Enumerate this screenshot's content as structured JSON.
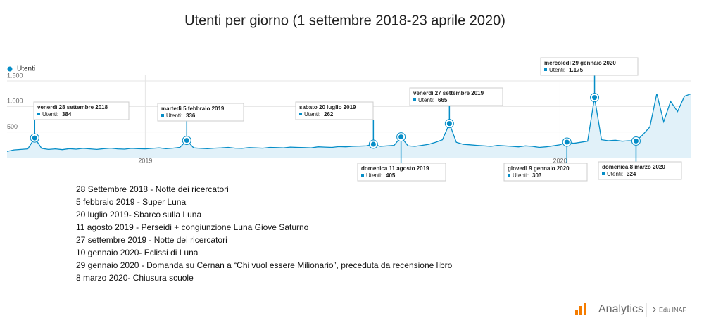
{
  "chart_data": {
    "type": "line",
    "title": "Utenti per giorno  (1 settembre 2018-23 aprile 2020)",
    "categories": [
      null,
      null,
      null,
      null,
      null,
      null,
      null,
      null,
      null,
      null,
      null,
      null,
      null,
      null,
      null,
      null,
      null,
      null,
      null,
      null,
      "2019",
      null,
      null,
      null,
      null,
      null,
      null,
      null,
      null,
      null,
      null,
      null,
      null,
      null,
      null,
      null,
      null,
      null,
      null,
      null,
      null,
      null,
      null,
      null,
      null,
      null,
      null,
      null,
      null,
      null,
      null,
      null,
      null,
      null,
      null,
      null,
      null,
      null,
      null,
      null,
      null,
      null,
      null,
      null,
      null,
      null,
      null,
      null,
      null,
      null,
      null,
      null,
      null,
      null,
      null,
      null,
      null,
      null,
      null,
      null,
      "2020",
      null,
      null,
      null,
      null,
      null,
      null,
      null,
      null,
      null,
      null,
      null,
      null,
      null,
      null,
      null,
      null,
      null,
      null,
      null
    ],
    "series": [
      {
        "name": "Utenti",
        "color": "#058dc7",
        "values": [
          120,
          150,
          160,
          170,
          384,
          180,
          160,
          170,
          155,
          175,
          165,
          180,
          170,
          160,
          175,
          185,
          170,
          165,
          180,
          175,
          170,
          180,
          190,
          175,
          185,
          200,
          336,
          190,
          180,
          175,
          185,
          190,
          200,
          185,
          180,
          195,
          190,
          185,
          200,
          195,
          190,
          205,
          200,
          195,
          190,
          210,
          205,
          200,
          215,
          210,
          220,
          225,
          230,
          262,
          220,
          230,
          240,
          405,
          230,
          220,
          240,
          260,
          300,
          350,
          665,
          300,
          260,
          250,
          240,
          230,
          220,
          240,
          230,
          220,
          210,
          230,
          220,
          200,
          210,
          230,
          250,
          303,
          280,
          300,
          320,
          1175,
          350,
          330,
          340,
          320,
          330,
          324,
          450,
          600,
          1250,
          700,
          1100,
          900,
          1200,
          1250
        ]
      }
    ],
    "ylim": [
      0,
      1500
    ],
    "yticks": [
      500,
      {
        "value": 1000,
        "label": "1.000"
      },
      {
        "value": 1500,
        "label": "1.500"
      }
    ],
    "grid": true,
    "annotations": [
      {
        "date": "venerdì 28 settembre 2018",
        "label": "Utenti:",
        "value": 384
      },
      {
        "date": "martedì 5 febbraio 2019",
        "label": "Utenti:",
        "value": 336
      },
      {
        "date": "sabato 20 luglio 2019",
        "label": "Utenti:",
        "value": 262
      },
      {
        "date": "domenica 11 agosto 2019",
        "label": "Utenti:",
        "value": 405
      },
      {
        "date": "venerdì 27 settembre 2019",
        "label": "Utenti:",
        "value": 665
      },
      {
        "date": "giovedì 9 gennaio 2020",
        "label": "Utenti:",
        "value": 303
      },
      {
        "date": "mercoledì 29 gennaio 2020",
        "label": "Utenti:",
        "value": 1175,
        "value_label": "1.175"
      },
      {
        "date": "domenica 8 marzo 2020",
        "label": "Utenti:",
        "value": 324
      }
    ],
    "notes": [
      "28 Settembre 2018 - Notte dei ricercatori",
      "5 febbraio 2019 - Super Luna",
      "20 luglio 2019- Sbarco sulla Luna",
      "11 agosto 2019 - Perseidi + congiunzione Luna Giove Saturno",
      "27 settembre 2019 - Notte dei ricercatori",
      "10 gennaio 2020- Eclissi di Luna",
      "29 gennaio 2020 - Domanda su Cernan a “Chi vuol essere Milionario”, preceduta da recensione libro",
      "8 marzo 2020- Chiusura scuole"
    ]
  },
  "footer": {
    "brand": "Analytics",
    "account": "Edu INAF"
  }
}
